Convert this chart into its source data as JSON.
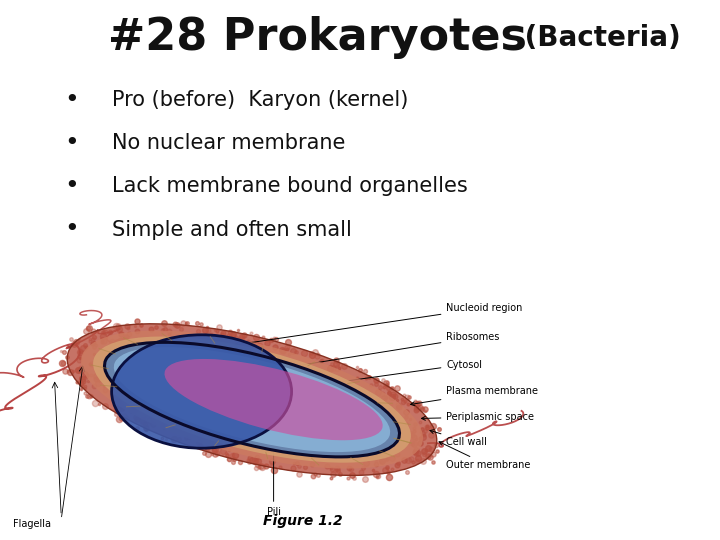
{
  "background_color": "#ffffff",
  "title_main": "#28 Prokaryotes",
  "title_sub": " (Bacteria)",
  "title_fontsize_main": 32,
  "title_fontsize_sub": 20,
  "title_color": "#111111",
  "bullet_points": [
    "Pro (before)  Karyon (kernel)",
    "No nuclear membrane",
    "Lack membrane bound organelles",
    "Simple and often small"
  ],
  "bullet_fontsize": 15,
  "bullet_color": "#111111",
  "fig_label": "Figure 1.2",
  "diagram_labels": [
    "Nucleoid region",
    "Ribosomes",
    "Cytosol",
    "Plasma membrane",
    "Periplasmic space",
    "Cell wall",
    "Outer membrane"
  ],
  "bottom_labels": [
    "Pili",
    "Flagella"
  ],
  "outer_color": "#b85040",
  "cell_wall_color": "#cc7a60",
  "peripl_color": "#d4a070",
  "plasma_color": "#5580b8",
  "cytosol_color": "#8ab4d8",
  "nucleoid_color": "#3858a8",
  "ribo_color": "#cc50a0",
  "flagella_color": "#b03030"
}
